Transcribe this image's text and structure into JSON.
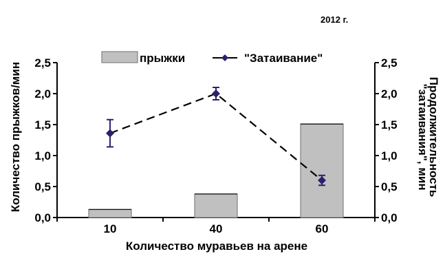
{
  "chart_data": {
    "type": "bar+line",
    "year_label": "2012 г.",
    "categories": [
      "10",
      "40",
      "60"
    ],
    "xlabel": "Количество муравьев на арене",
    "ylabel_left": "Количество прыжков/мин",
    "ylabel_right_line1": "Продолжительность",
    "ylabel_right_line2": "\"затаивания\", мин",
    "y_left_lim": [
      0,
      2.5
    ],
    "y_right_lim": [
      0,
      2.5
    ],
    "y_ticks": [
      "0,0",
      "0,5",
      "1,0",
      "1,5",
      "2,0",
      "2,5"
    ],
    "y_tick_values": [
      0,
      0.5,
      1.0,
      1.5,
      2.0,
      2.5
    ],
    "legend": {
      "position": "top-center",
      "bars_label": "прыжки",
      "line_label": "\"Затаивание\""
    },
    "bars": {
      "name": "прыжки",
      "values": [
        0.13,
        0.38,
        1.51
      ],
      "color": "#c0c0c0",
      "edge": "#808080"
    },
    "line": {
      "name": "\"Затаивание\"",
      "values": [
        1.36,
        2.0,
        0.6
      ],
      "errors": [
        0.22,
        0.1,
        0.08
      ],
      "color": "#2e1f6b",
      "style": "dashed"
    },
    "grid": false
  }
}
